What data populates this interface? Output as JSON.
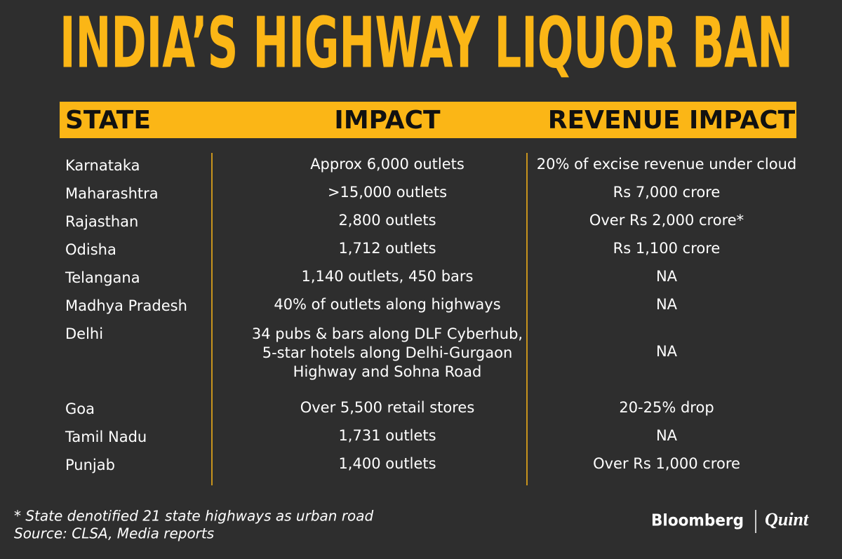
{
  "header": {
    "title": "INDIA’S HIGHWAY LIQUOR BAN"
  },
  "table": {
    "columns": [
      "STATE",
      "IMPACT",
      "REVENUE IMPACT"
    ],
    "rows": [
      [
        "Karnataka",
        "Approx 6,000 outlets",
        "20% of excise revenue under cloud"
      ],
      [
        "Maharashtra",
        ">15,000 outlets",
        "Rs 7,000 crore"
      ],
      [
        "Rajasthan",
        "2,800 outlets",
        "Over Rs 2,000 crore*"
      ],
      [
        "Odisha",
        "1,712 outlets",
        "Rs 1,100 crore"
      ],
      [
        "Telangana",
        "1,140 outlets, 450 bars",
        "NA"
      ],
      [
        "Madhya Pradesh",
        "40% of outlets along highways",
        "NA"
      ],
      [
        "Delhi",
        [
          "34 pubs & bars along DLF Cyberhub,",
          "5-star hotels along Delhi-Gurgaon",
          "Highway and Sohna Road"
        ],
        "NA"
      ],
      [
        "Goa",
        "Over 5,500  retail stores",
        "20-25% drop"
      ],
      [
        "Tamil Nadu",
        "1,731 outlets",
        "NA"
      ],
      [
        "Punjab",
        "1,400 outlets",
        "Over Rs 1,000 crore"
      ]
    ]
  },
  "footer": {
    "notes": [
      "* State denotified 21 state highways as urban road",
      "Source: CLSA, Media reports"
    ],
    "brand": [
      "Bloomberg",
      "Quint"
    ]
  }
}
